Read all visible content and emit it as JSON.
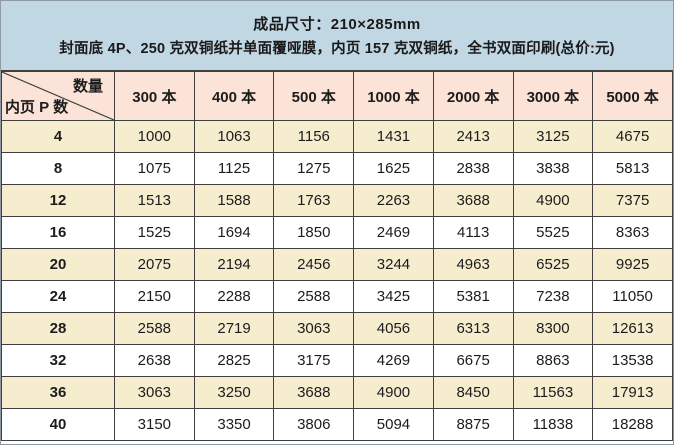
{
  "banner": {
    "line1": "成品尺寸：210×285mm",
    "line2": "封面底 4P、250 克双铜纸并单面覆哑膜，内页 157 克双铜纸，全书双面印刷(总价:元)"
  },
  "table": {
    "corner": {
      "top_right": "数量",
      "bottom_left": "内页 P 数"
    },
    "columns": [
      "300 本",
      "400 本",
      "500 本",
      "1000 本",
      "2000 本",
      "3000 本",
      "5000 本"
    ],
    "rows": [
      {
        "label": "4",
        "values": [
          1000,
          1063,
          1156,
          1431,
          2413,
          3125,
          4675
        ]
      },
      {
        "label": "8",
        "values": [
          1075,
          1125,
          1275,
          1625,
          2838,
          3838,
          5813
        ]
      },
      {
        "label": "12",
        "values": [
          1513,
          1588,
          1763,
          2263,
          3688,
          4900,
          7375
        ]
      },
      {
        "label": "16",
        "values": [
          1525,
          1694,
          1850,
          2469,
          4113,
          5525,
          8363
        ]
      },
      {
        "label": "20",
        "values": [
          2075,
          2194,
          2456,
          3244,
          4963,
          6525,
          9925
        ]
      },
      {
        "label": "24",
        "values": [
          2150,
          2288,
          2588,
          3425,
          5381,
          7238,
          11050
        ]
      },
      {
        "label": "28",
        "values": [
          2588,
          2719,
          3063,
          4056,
          6313,
          8300,
          12613
        ]
      },
      {
        "label": "32",
        "values": [
          2638,
          2825,
          3175,
          4269,
          6675,
          8863,
          13538
        ]
      },
      {
        "label": "36",
        "values": [
          3063,
          3250,
          3688,
          4900,
          8450,
          11563,
          17913
        ]
      },
      {
        "label": "40",
        "values": [
          3150,
          3350,
          3806,
          5094,
          8875,
          11838,
          18288
        ]
      }
    ]
  },
  "colors": {
    "banner_bg": "#c1d7e3",
    "header_bg": "#fbe3d8",
    "row_alt_bg": "#f6edcf",
    "row_bg": "#ffffff",
    "border": "#3f3f3f"
  }
}
